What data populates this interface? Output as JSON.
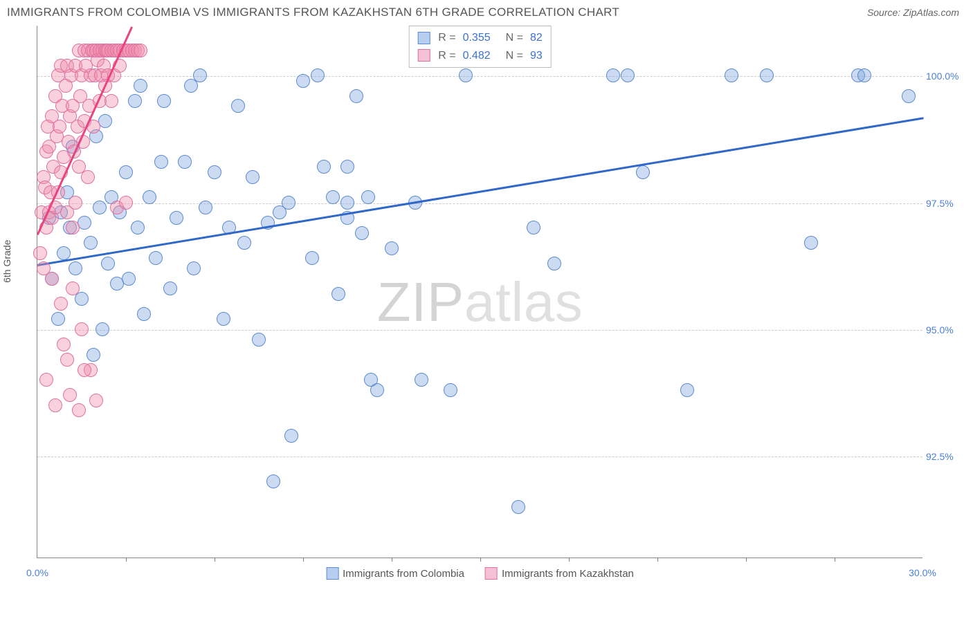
{
  "header": {
    "title": "IMMIGRANTS FROM COLOMBIA VS IMMIGRANTS FROM KAZAKHSTAN 6TH GRADE CORRELATION CHART",
    "source_prefix": "Source: ",
    "source": "ZipAtlas.com"
  },
  "watermark": {
    "part1": "ZIP",
    "part2": "atlas"
  },
  "chart": {
    "type": "scatter",
    "xlim": [
      0,
      30
    ],
    "ylim": [
      90.5,
      101
    ],
    "x_label_min": "0.0%",
    "x_label_max": "30.0%",
    "y_label": "6th Grade",
    "y_gridlines": [
      92.5,
      95.0,
      97.5,
      100.0
    ],
    "y_tick_labels": [
      "92.5%",
      "95.0%",
      "97.5%",
      "100.0%"
    ],
    "x_ticks": [
      3,
      6,
      9,
      12,
      15,
      18,
      21,
      24,
      27
    ],
    "grid_color": "#cccccc",
    "axis_color": "#888888",
    "background_color": "#ffffff",
    "dot_radius": 10,
    "dot_opacity": 0.45,
    "series": [
      {
        "name": "Immigrants from Colombia",
        "color_fill": "rgba(120,160,220,0.38)",
        "color_stroke": "#5a8bd0",
        "swatch_fill": "#b8cef0",
        "swatch_border": "#5a8bd0",
        "R": "0.355",
        "N": "82",
        "trend": {
          "x1": 0,
          "y1": 96.3,
          "x2": 30,
          "y2": 99.2,
          "color": "#2f68c9"
        },
        "points": [
          [
            0.4,
            97.2
          ],
          [
            0.5,
            96.0
          ],
          [
            0.7,
            95.2
          ],
          [
            0.8,
            97.3
          ],
          [
            0.9,
            96.5
          ],
          [
            1.0,
            97.7
          ],
          [
            1.1,
            97.0
          ],
          [
            1.2,
            98.6
          ],
          [
            1.3,
            96.2
          ],
          [
            1.5,
            95.6
          ],
          [
            1.6,
            97.1
          ],
          [
            1.8,
            96.7
          ],
          [
            1.9,
            94.5
          ],
          [
            2.0,
            98.8
          ],
          [
            2.1,
            97.4
          ],
          [
            2.2,
            95.0
          ],
          [
            2.4,
            96.3
          ],
          [
            2.5,
            97.6
          ],
          [
            2.7,
            95.9
          ],
          [
            2.8,
            97.3
          ],
          [
            3.0,
            98.1
          ],
          [
            3.1,
            96.0
          ],
          [
            3.3,
            99.5
          ],
          [
            3.4,
            97.0
          ],
          [
            3.6,
            95.3
          ],
          [
            3.8,
            97.6
          ],
          [
            4.0,
            96.4
          ],
          [
            4.2,
            98.3
          ],
          [
            4.5,
            95.8
          ],
          [
            4.7,
            97.2
          ],
          [
            5.0,
            98.3
          ],
          [
            5.3,
            96.2
          ],
          [
            5.5,
            100.0
          ],
          [
            5.7,
            97.4
          ],
          [
            6.0,
            98.1
          ],
          [
            6.3,
            95.2
          ],
          [
            6.5,
            97.0
          ],
          [
            6.8,
            99.4
          ],
          [
            7.0,
            96.7
          ],
          [
            7.3,
            98.0
          ],
          [
            7.5,
            94.8
          ],
          [
            7.8,
            97.1
          ],
          [
            8.0,
            92.0
          ],
          [
            8.2,
            97.3
          ],
          [
            8.5,
            97.5
          ],
          [
            8.6,
            92.9
          ],
          [
            9.0,
            99.9
          ],
          [
            9.3,
            96.4
          ],
          [
            9.5,
            100.0
          ],
          [
            9.7,
            98.2
          ],
          [
            10.0,
            97.6
          ],
          [
            10.2,
            95.7
          ],
          [
            10.5,
            97.2
          ],
          [
            10.5,
            98.2
          ],
          [
            10.5,
            97.5
          ],
          [
            10.8,
            99.6
          ],
          [
            11.0,
            96.9
          ],
          [
            11.2,
            97.6
          ],
          [
            11.3,
            94.0
          ],
          [
            11.5,
            93.8
          ],
          [
            12.0,
            96.6
          ],
          [
            12.8,
            97.5
          ],
          [
            13.0,
            94.0
          ],
          [
            14.0,
            93.8
          ],
          [
            14.5,
            100.0
          ],
          [
            16.3,
            91.5
          ],
          [
            16.8,
            97.0
          ],
          [
            17.5,
            96.3
          ],
          [
            19.5,
            100.0
          ],
          [
            20.0,
            100.0
          ],
          [
            20.5,
            98.1
          ],
          [
            22.0,
            93.8
          ],
          [
            23.5,
            100.0
          ],
          [
            24.7,
            100.0
          ],
          [
            26.2,
            96.7
          ],
          [
            27.8,
            100.0
          ],
          [
            28.0,
            100.0
          ],
          [
            29.5,
            99.6
          ],
          [
            2.3,
            99.1
          ],
          [
            3.5,
            99.8
          ],
          [
            4.3,
            99.5
          ],
          [
            5.2,
            99.8
          ]
        ]
      },
      {
        "name": "Immigrants from Kazakhstan",
        "color_fill": "rgba(240,140,170,0.40)",
        "color_stroke": "#e070a0",
        "swatch_fill": "#f5c0d5",
        "swatch_border": "#e070a0",
        "R": "0.482",
        "N": "93",
        "trend": {
          "x1": 0,
          "y1": 96.9,
          "x2": 3.2,
          "y2": 101.0,
          "color": "#e8447f"
        },
        "points": [
          [
            0.1,
            96.5
          ],
          [
            0.15,
            97.3
          ],
          [
            0.2,
            98.0
          ],
          [
            0.2,
            96.2
          ],
          [
            0.25,
            97.8
          ],
          [
            0.3,
            98.5
          ],
          [
            0.3,
            97.0
          ],
          [
            0.35,
            99.0
          ],
          [
            0.4,
            97.3
          ],
          [
            0.4,
            98.6
          ],
          [
            0.45,
            97.7
          ],
          [
            0.5,
            99.2
          ],
          [
            0.5,
            96.0
          ],
          [
            0.5,
            97.2
          ],
          [
            0.55,
            98.2
          ],
          [
            0.6,
            99.6
          ],
          [
            0.6,
            97.4
          ],
          [
            0.65,
            98.8
          ],
          [
            0.7,
            100.0
          ],
          [
            0.7,
            97.7
          ],
          [
            0.75,
            99.0
          ],
          [
            0.8,
            98.1
          ],
          [
            0.8,
            100.2
          ],
          [
            0.85,
            99.4
          ],
          [
            0.9,
            94.7
          ],
          [
            0.9,
            98.4
          ],
          [
            0.95,
            99.8
          ],
          [
            1.0,
            97.3
          ],
          [
            1.0,
            100.2
          ],
          [
            1.05,
            98.7
          ],
          [
            1.1,
            99.2
          ],
          [
            1.1,
            93.7
          ],
          [
            1.15,
            100.0
          ],
          [
            1.2,
            97.0
          ],
          [
            1.2,
            99.4
          ],
          [
            1.25,
            98.5
          ],
          [
            1.3,
            100.2
          ],
          [
            1.3,
            97.5
          ],
          [
            1.35,
            99.0
          ],
          [
            1.4,
            100.5
          ],
          [
            1.4,
            98.2
          ],
          [
            1.45,
            99.6
          ],
          [
            1.5,
            95.0
          ],
          [
            1.5,
            100.0
          ],
          [
            1.55,
            98.7
          ],
          [
            1.6,
            100.5
          ],
          [
            1.6,
            99.1
          ],
          [
            1.65,
            100.2
          ],
          [
            1.7,
            98.0
          ],
          [
            1.7,
            100.5
          ],
          [
            1.75,
            99.4
          ],
          [
            1.8,
            100.0
          ],
          [
            1.8,
            94.2
          ],
          [
            1.85,
            100.5
          ],
          [
            1.9,
            99.0
          ],
          [
            1.9,
            100.5
          ],
          [
            1.95,
            100.0
          ],
          [
            2.0,
            100.5
          ],
          [
            2.0,
            93.6
          ],
          [
            2.05,
            100.3
          ],
          [
            2.1,
            99.5
          ],
          [
            2.1,
            100.5
          ],
          [
            2.15,
            100.0
          ],
          [
            2.2,
            100.5
          ],
          [
            2.25,
            100.2
          ],
          [
            2.3,
            100.5
          ],
          [
            2.3,
            99.8
          ],
          [
            2.35,
            100.5
          ],
          [
            2.4,
            100.0
          ],
          [
            2.4,
            100.5
          ],
          [
            2.5,
            100.5
          ],
          [
            2.5,
            99.5
          ],
          [
            2.6,
            100.5
          ],
          [
            2.6,
            100.0
          ],
          [
            2.7,
            100.5
          ],
          [
            2.7,
            97.4
          ],
          [
            2.8,
            100.5
          ],
          [
            2.8,
            100.2
          ],
          [
            2.9,
            100.5
          ],
          [
            3.0,
            97.5
          ],
          [
            3.0,
            100.5
          ],
          [
            3.1,
            100.5
          ],
          [
            3.2,
            100.5
          ],
          [
            3.3,
            100.5
          ],
          [
            3.4,
            100.5
          ],
          [
            3.5,
            100.5
          ],
          [
            0.3,
            94.0
          ],
          [
            0.6,
            93.5
          ],
          [
            0.8,
            95.5
          ],
          [
            1.0,
            94.4
          ],
          [
            1.2,
            95.8
          ],
          [
            1.4,
            93.4
          ],
          [
            1.6,
            94.2
          ]
        ]
      }
    ]
  }
}
